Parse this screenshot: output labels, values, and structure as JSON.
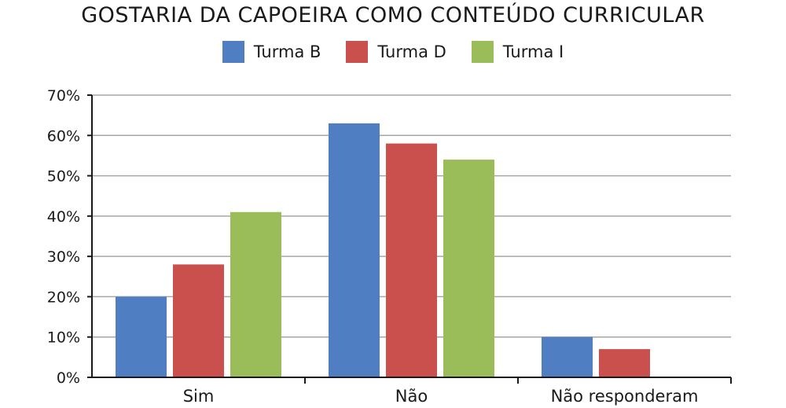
{
  "chart_data": {
    "type": "bar",
    "title": "GOSTARIA DA CAPOEIRA COMO CONTEÚDO CURRICULAR",
    "categories": [
      "Sim",
      "Não",
      "Não responderam"
    ],
    "series": [
      {
        "name": "Turma B",
        "color": "#4f7ec2",
        "values": [
          20,
          63,
          10
        ]
      },
      {
        "name": "Turma D",
        "color": "#c9504d",
        "values": [
          28,
          58,
          7
        ]
      },
      {
        "name": "Turma I",
        "color": "#9bbd59",
        "values": [
          41,
          54,
          0
        ]
      }
    ],
    "ylim": [
      0,
      70
    ],
    "yticks": [
      "0%",
      "10%",
      "20%",
      "30%",
      "40%",
      "50%",
      "60%",
      "70%"
    ],
    "grid": true,
    "legend_position": "top-center"
  }
}
